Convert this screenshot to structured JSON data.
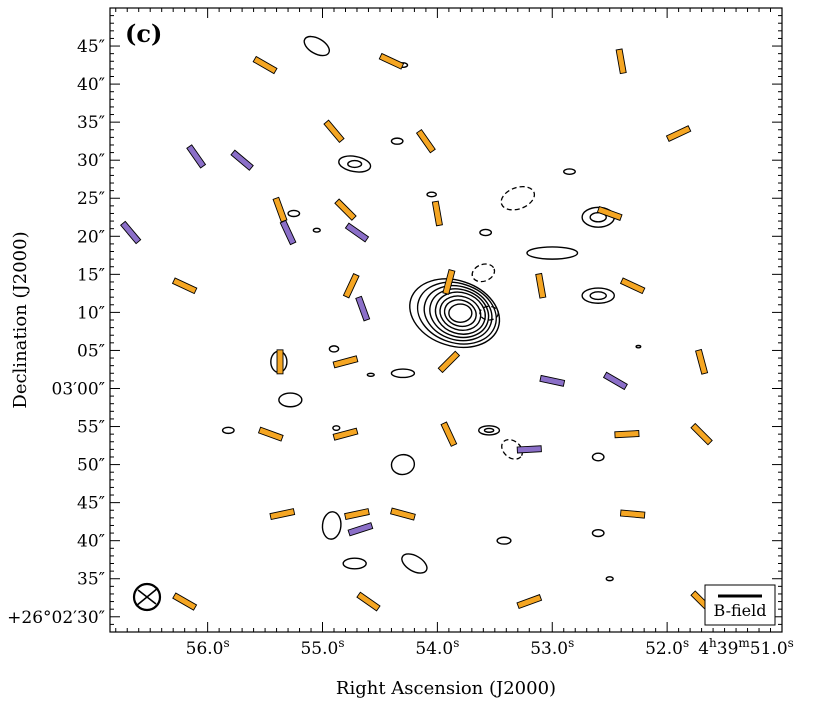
{
  "chart_data": {
    "type": "scatter",
    "panel_label": "(c)",
    "xlabel": "Right Ascension (J2000)",
    "ylabel": "Declination (J2000)",
    "x_ticks": [
      {
        "ra_s": 56.0,
        "base": "56.0",
        "sup": "s",
        "prefix": ""
      },
      {
        "ra_s": 55.0,
        "base": "55.0",
        "sup": "s",
        "prefix": ""
      },
      {
        "ra_s": 54.0,
        "base": "54.0",
        "sup": "s",
        "prefix": ""
      },
      {
        "ra_s": 53.0,
        "base": "53.0",
        "sup": "s",
        "prefix": ""
      },
      {
        "ra_s": 52.0,
        "base": "52.0",
        "sup": "s",
        "prefix": ""
      },
      {
        "ra_s": 51.0,
        "base": "51.0",
        "sup": "s",
        "prefix": "4h39m"
      }
    ],
    "y_ticks": [
      {
        "dec_arcsec": 45,
        "label": "45″"
      },
      {
        "dec_arcsec": 40,
        "label": "40″"
      },
      {
        "dec_arcsec": 35,
        "label": "35″"
      },
      {
        "dec_arcsec": 30,
        "label": "30″"
      },
      {
        "dec_arcsec": 25,
        "label": "25″"
      },
      {
        "dec_arcsec": 20,
        "label": "20″"
      },
      {
        "dec_arcsec": 15,
        "label": "15″"
      },
      {
        "dec_arcsec": 10,
        "label": "10″"
      },
      {
        "dec_arcsec": 5,
        "label": "05″"
      },
      {
        "dec_arcsec": 0,
        "label": "03′00″"
      },
      {
        "dec_arcsec": -5,
        "label": "55″"
      },
      {
        "dec_arcsec": -10,
        "label": "50″"
      },
      {
        "dec_arcsec": -15,
        "label": "45″"
      },
      {
        "dec_arcsec": -20,
        "label": "40″"
      },
      {
        "dec_arcsec": -25,
        "label": "35″"
      },
      {
        "dec_arcsec": -30,
        "label": "+26°02′30″"
      }
    ],
    "x_range_ra_s": [
      56.85,
      51.0
    ],
    "y_range_dec_arcsec": [
      -32,
      50
    ],
    "legend": {
      "label": "B-field",
      "placement": "bottom-right"
    },
    "colors": {
      "orange": "#f5a623",
      "purple": "#8b6fc8",
      "contour": "#000000"
    },
    "vectors": [
      {
        "ra": 55.5,
        "dec": 42.5,
        "angle": 30,
        "color": "orange"
      },
      {
        "ra": 54.4,
        "dec": 43.0,
        "angle": 25,
        "color": "orange"
      },
      {
        "ra": 52.4,
        "dec": 43.0,
        "angle": 80,
        "color": "orange"
      },
      {
        "ra": 56.1,
        "dec": 30.5,
        "angle": 55,
        "color": "purple"
      },
      {
        "ra": 55.7,
        "dec": 30.0,
        "angle": 40,
        "color": "purple"
      },
      {
        "ra": 54.9,
        "dec": 33.8,
        "angle": 50,
        "color": "orange"
      },
      {
        "ra": 54.1,
        "dec": 32.5,
        "angle": 55,
        "color": "orange"
      },
      {
        "ra": 51.9,
        "dec": 33.5,
        "angle": -25,
        "color": "orange"
      },
      {
        "ra": 56.67,
        "dec": 20.5,
        "angle": 50,
        "color": "purple"
      },
      {
        "ra": 55.37,
        "dec": 23.5,
        "angle": 70,
        "color": "orange"
      },
      {
        "ra": 55.3,
        "dec": 20.5,
        "angle": 65,
        "color": "purple"
      },
      {
        "ra": 54.8,
        "dec": 23.5,
        "angle": 45,
        "color": "orange"
      },
      {
        "ra": 54.7,
        "dec": 20.5,
        "angle": 35,
        "color": "purple"
      },
      {
        "ra": 54.0,
        "dec": 23.0,
        "angle": 80,
        "color": "orange"
      },
      {
        "ra": 52.5,
        "dec": 23.0,
        "angle": 20,
        "color": "orange"
      },
      {
        "ra": 56.2,
        "dec": 13.5,
        "angle": 25,
        "color": "orange"
      },
      {
        "ra": 54.75,
        "dec": 13.5,
        "angle": -65,
        "color": "orange"
      },
      {
        "ra": 54.65,
        "dec": 10.5,
        "angle": 70,
        "color": "purple"
      },
      {
        "ra": 53.9,
        "dec": 14.0,
        "angle": -75,
        "color": "orange"
      },
      {
        "ra": 53.1,
        "dec": 13.5,
        "angle": 80,
        "color": "orange"
      },
      {
        "ra": 52.3,
        "dec": 13.5,
        "angle": 25,
        "color": "orange"
      },
      {
        "ra": 55.37,
        "dec": 3.5,
        "angle": 90,
        "color": "orange"
      },
      {
        "ra": 54.8,
        "dec": 3.5,
        "angle": -15,
        "color": "orange"
      },
      {
        "ra": 53.9,
        "dec": 3.5,
        "angle": -45,
        "color": "orange"
      },
      {
        "ra": 53.0,
        "dec": 1.0,
        "angle": 12,
        "color": "purple"
      },
      {
        "ra": 52.45,
        "dec": 1.0,
        "angle": 30,
        "color": "purple"
      },
      {
        "ra": 51.7,
        "dec": 3.5,
        "angle": 75,
        "color": "orange"
      },
      {
        "ra": 55.45,
        "dec": -6.0,
        "angle": 20,
        "color": "orange"
      },
      {
        "ra": 54.8,
        "dec": -6.0,
        "angle": -15,
        "color": "orange"
      },
      {
        "ra": 53.9,
        "dec": -6.0,
        "angle": 65,
        "color": "orange"
      },
      {
        "ra": 53.2,
        "dec": -8.0,
        "angle": -3,
        "color": "purple"
      },
      {
        "ra": 52.35,
        "dec": -6.0,
        "angle": -3,
        "color": "orange"
      },
      {
        "ra": 51.7,
        "dec": -6.0,
        "angle": 45,
        "color": "orange"
      },
      {
        "ra": 55.35,
        "dec": -16.5,
        "angle": -12,
        "color": "orange"
      },
      {
        "ra": 54.7,
        "dec": -16.5,
        "angle": -12,
        "color": "orange"
      },
      {
        "ra": 54.67,
        "dec": -18.5,
        "angle": -18,
        "color": "purple"
      },
      {
        "ra": 54.3,
        "dec": -16.5,
        "angle": 15,
        "color": "orange"
      },
      {
        "ra": 52.3,
        "dec": -16.5,
        "angle": 5,
        "color": "orange"
      },
      {
        "ra": 56.2,
        "dec": -28.0,
        "angle": 30,
        "color": "orange"
      },
      {
        "ra": 54.6,
        "dec": -28.0,
        "angle": 35,
        "color": "orange"
      },
      {
        "ra": 53.2,
        "dec": -28.0,
        "angle": -20,
        "color": "orange"
      },
      {
        "ra": 51.7,
        "dec": -28.0,
        "angle": 45,
        "color": "orange"
      }
    ],
    "contours": [
      {
        "type": "ellipse",
        "ra": 53.85,
        "dec": 9.9,
        "rx": 0.4,
        "ry": 4.3,
        "rot": 18,
        "sign": "pos"
      },
      {
        "type": "ellipse",
        "ra": 53.83,
        "dec": 9.9,
        "rx": 0.35,
        "ry": 3.9,
        "rot": 18,
        "sign": "pos"
      },
      {
        "type": "ellipse",
        "ra": 53.82,
        "dec": 9.9,
        "rx": 0.3,
        "ry": 3.5,
        "rot": 18,
        "sign": "pos"
      },
      {
        "type": "ellipse",
        "ra": 53.81,
        "dec": 9.9,
        "rx": 0.26,
        "ry": 3.1,
        "rot": 18,
        "sign": "pos"
      },
      {
        "type": "ellipse",
        "ra": 53.8,
        "dec": 9.9,
        "rx": 0.22,
        "ry": 2.7,
        "rot": 18,
        "sign": "pos"
      },
      {
        "type": "ellipse",
        "ra": 53.8,
        "dec": 9.9,
        "rx": 0.18,
        "ry": 2.2,
        "rot": 18,
        "sign": "pos"
      },
      {
        "type": "ellipse",
        "ra": 53.8,
        "dec": 9.9,
        "rx": 0.14,
        "ry": 1.7,
        "rot": 18,
        "sign": "pos"
      },
      {
        "type": "ellipse",
        "ra": 53.8,
        "dec": 9.9,
        "rx": 0.1,
        "ry": 1.2,
        "rot": 0,
        "sign": "pos"
      },
      {
        "type": "ellipse",
        "ra": 55.05,
        "dec": 45.0,
        "rx": 0.12,
        "ry": 1.0,
        "rot": 30,
        "sign": "pos"
      },
      {
        "type": "ellipse",
        "ra": 54.3,
        "dec": 42.5,
        "rx": 0.04,
        "ry": 0.3,
        "rot": 0,
        "sign": "pos"
      },
      {
        "type": "ellipse",
        "ra": 54.35,
        "dec": 32.5,
        "rx": 0.05,
        "ry": 0.4,
        "rot": 0,
        "sign": "pos"
      },
      {
        "type": "ellipse",
        "ra": 54.72,
        "dec": 29.5,
        "rx": 0.14,
        "ry": 1.0,
        "rot": 10,
        "sign": "pos"
      },
      {
        "type": "ellipse",
        "ra": 54.72,
        "dec": 29.5,
        "rx": 0.06,
        "ry": 0.45,
        "rot": 0,
        "sign": "pos"
      },
      {
        "type": "ellipse",
        "ra": 52.85,
        "dec": 28.5,
        "rx": 0.05,
        "ry": 0.35,
        "rot": 0,
        "sign": "pos"
      },
      {
        "type": "ellipse",
        "ra": 54.05,
        "dec": 25.5,
        "rx": 0.04,
        "ry": 0.3,
        "rot": 0,
        "sign": "pos"
      },
      {
        "type": "ellipse",
        "ra": 55.25,
        "dec": 23.0,
        "rx": 0.05,
        "ry": 0.4,
        "rot": 0,
        "sign": "pos"
      },
      {
        "type": "ellipse",
        "ra": 55.05,
        "dec": 20.8,
        "rx": 0.03,
        "ry": 0.25,
        "rot": 0,
        "sign": "pos"
      },
      {
        "type": "ellipse",
        "ra": 52.6,
        "dec": 22.5,
        "rx": 0.14,
        "ry": 1.3,
        "rot": 0,
        "sign": "pos"
      },
      {
        "type": "ellipse",
        "ra": 52.6,
        "dec": 22.5,
        "rx": 0.07,
        "ry": 0.6,
        "rot": 0,
        "sign": "pos"
      },
      {
        "type": "ellipse",
        "ra": 53.58,
        "dec": 20.5,
        "rx": 0.05,
        "ry": 0.4,
        "rot": 0,
        "sign": "pos"
      },
      {
        "type": "ellipse",
        "ra": 53.0,
        "dec": 17.8,
        "rx": 0.22,
        "ry": 0.8,
        "rot": 0,
        "sign": "pos"
      },
      {
        "type": "ellipse",
        "ra": 52.6,
        "dec": 12.2,
        "rx": 0.14,
        "ry": 1.0,
        "rot": 0,
        "sign": "pos"
      },
      {
        "type": "ellipse",
        "ra": 52.6,
        "dec": 12.2,
        "rx": 0.07,
        "ry": 0.5,
        "rot": 0,
        "sign": "pos"
      },
      {
        "type": "ellipse",
        "ra": 55.38,
        "dec": 3.5,
        "rx": 0.07,
        "ry": 1.4,
        "rot": 0,
        "sign": "pos"
      },
      {
        "type": "ellipse",
        "ra": 54.9,
        "dec": 5.2,
        "rx": 0.04,
        "ry": 0.4,
        "rot": 0,
        "sign": "pos"
      },
      {
        "type": "ellipse",
        "ra": 54.3,
        "dec": 2.0,
        "rx": 0.1,
        "ry": 0.55,
        "rot": 0,
        "sign": "pos"
      },
      {
        "type": "ellipse",
        "ra": 54.58,
        "dec": 1.8,
        "rx": 0.03,
        "ry": 0.2,
        "rot": 0,
        "sign": "pos"
      },
      {
        "type": "ellipse",
        "ra": 55.28,
        "dec": -1.5,
        "rx": 0.1,
        "ry": 0.9,
        "rot": 0,
        "sign": "pos"
      },
      {
        "type": "ellipse",
        "ra": 52.25,
        "dec": 5.5,
        "rx": 0.02,
        "ry": 0.15,
        "rot": 0,
        "sign": "pos"
      },
      {
        "type": "ellipse",
        "ra": 55.82,
        "dec": -5.5,
        "rx": 0.05,
        "ry": 0.4,
        "rot": 0,
        "sign": "pos"
      },
      {
        "type": "ellipse",
        "ra": 54.88,
        "dec": -5.2,
        "rx": 0.03,
        "ry": 0.3,
        "rot": 0,
        "sign": "pos"
      },
      {
        "type": "ellipse",
        "ra": 53.55,
        "dec": -5.5,
        "rx": 0.09,
        "ry": 0.6,
        "rot": 0,
        "sign": "pos"
      },
      {
        "type": "ellipse",
        "ra": 53.55,
        "dec": -5.5,
        "rx": 0.04,
        "ry": 0.25,
        "rot": 0,
        "sign": "pos"
      },
      {
        "type": "ellipse",
        "ra": 52.6,
        "dec": -9.0,
        "rx": 0.05,
        "ry": 0.5,
        "rot": 0,
        "sign": "pos"
      },
      {
        "type": "ellipse",
        "ra": 54.3,
        "dec": -10.0,
        "rx": 0.1,
        "ry": 1.3,
        "rot": -10,
        "sign": "pos"
      },
      {
        "type": "ellipse",
        "ra": 54.92,
        "dec": -18.0,
        "rx": 0.08,
        "ry": 1.8,
        "rot": 5,
        "sign": "pos"
      },
      {
        "type": "ellipse",
        "ra": 54.2,
        "dec": -23.0,
        "rx": 0.12,
        "ry": 1.0,
        "rot": 30,
        "sign": "pos"
      },
      {
        "type": "ellipse",
        "ra": 54.72,
        "dec": -23.0,
        "rx": 0.1,
        "ry": 0.7,
        "rot": 0,
        "sign": "pos"
      },
      {
        "type": "ellipse",
        "ra": 53.42,
        "dec": -20.0,
        "rx": 0.06,
        "ry": 0.45,
        "rot": 0,
        "sign": "pos"
      },
      {
        "type": "ellipse",
        "ra": 52.6,
        "dec": -19.0,
        "rx": 0.05,
        "ry": 0.45,
        "rot": 0,
        "sign": "pos"
      },
      {
        "type": "ellipse",
        "ra": 52.5,
        "dec": -25.0,
        "rx": 0.03,
        "ry": 0.25,
        "rot": 0,
        "sign": "pos"
      },
      {
        "type": "ellipse",
        "ra": 53.3,
        "dec": 25.0,
        "rx": 0.15,
        "ry": 1.4,
        "rot": -20,
        "sign": "neg"
      },
      {
        "type": "ellipse",
        "ra": 53.6,
        "dec": 15.2,
        "rx": 0.1,
        "ry": 1.1,
        "rot": -20,
        "sign": "neg"
      },
      {
        "type": "ellipse",
        "ra": 53.55,
        "dec": 9.9,
        "rx": 0.08,
        "ry": 0.9,
        "rot": 0,
        "sign": "neg"
      },
      {
        "type": "ellipse",
        "ra": 53.35,
        "dec": -8.0,
        "rx": 0.1,
        "ry": 1.1,
        "rot": 40,
        "sign": "neg"
      }
    ]
  }
}
